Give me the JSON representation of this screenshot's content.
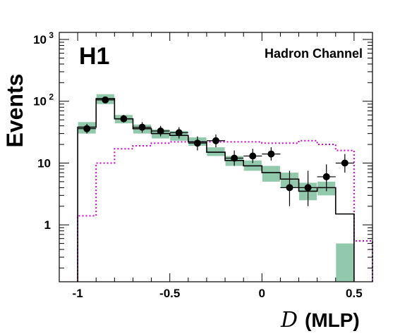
{
  "chart_data": {
    "type": "bar",
    "title": "",
    "experiment_label": "H1",
    "channel_label": "Hadron Channel",
    "xlabel_var": "D",
    "xlabel_rest": "(MLP)",
    "ylabel": "Events",
    "xlim": [
      -1.1,
      0.6
    ],
    "ylim": [
      0.12,
      1300
    ],
    "yscale": "log",
    "x_ticks": [
      {
        "value": -1,
        "label": "-1"
      },
      {
        "value": -0.5,
        "label": "-0.5"
      },
      {
        "value": 0,
        "label": "0"
      },
      {
        "value": 0.5,
        "label": "0.5"
      }
    ],
    "y_ticks": [
      {
        "value": 1,
        "base": "1",
        "exp": ""
      },
      {
        "value": 10,
        "base": "10",
        "exp": ""
      },
      {
        "value": 100,
        "base": "10",
        "exp": "2"
      },
      {
        "value": 1000,
        "base": "10",
        "exp": "3"
      }
    ],
    "bin_edges": [
      -1.0,
      -0.9,
      -0.8,
      -0.7,
      -0.6,
      -0.5,
      -0.4,
      -0.3,
      -0.2,
      -0.1,
      0.0,
      0.1,
      0.2,
      0.3,
      0.4,
      0.5
    ],
    "series": [
      {
        "kind": "mc_total",
        "color": "#000000",
        "values": [
          38,
          110,
          52,
          36,
          30,
          28,
          22,
          15,
          11,
          9,
          7,
          5.5,
          3.5,
          4,
          1.5
        ]
      },
      {
        "kind": "mc_uncertainty_band",
        "color": "#7fbf9f",
        "low": [
          30,
          90,
          44,
          30,
          25,
          23,
          19,
          13,
          9,
          7.5,
          5,
          4,
          2.5,
          3,
          0.08
        ],
        "high": [
          46,
          130,
          60,
          42,
          35,
          33,
          26,
          18,
          13,
          11,
          9,
          7,
          4.8,
          5,
          0.5
        ]
      },
      {
        "kind": "signal_dotted",
        "color": "#cc00cc",
        "values": [
          1.4,
          10,
          17,
          19,
          21,
          22,
          22,
          22,
          22,
          22,
          21,
          21,
          23,
          20,
          16,
          0.55
        ]
      },
      {
        "kind": "data",
        "color": "#000000",
        "x": [
          -0.95,
          -0.85,
          -0.75,
          -0.65,
          -0.55,
          -0.45,
          -0.35,
          -0.25,
          -0.15,
          -0.05,
          0.05,
          0.15,
          0.25,
          0.35,
          0.45
        ],
        "values": [
          36,
          105,
          52,
          38,
          33,
          31,
          21,
          23,
          12,
          13,
          14,
          4,
          4,
          6,
          10
        ],
        "err_low": [
          30,
          95,
          45,
          31,
          27,
          25,
          16,
          18,
          9,
          10,
          11,
          2,
          2,
          3.5,
          7
        ],
        "err_high": [
          43,
          116,
          60,
          46,
          40,
          38,
          27,
          29,
          16,
          17,
          18,
          7.5,
          7.5,
          9.5,
          14
        ]
      }
    ]
  }
}
